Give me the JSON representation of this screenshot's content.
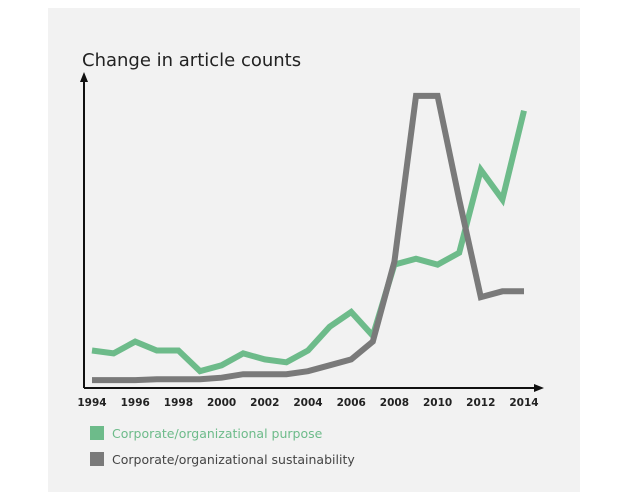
{
  "chart_data": {
    "type": "line",
    "title": "Change in article counts",
    "xlabel": "",
    "ylabel": "",
    "x": [
      1994,
      1995,
      1996,
      1997,
      1998,
      1999,
      2000,
      2001,
      2002,
      2003,
      2004,
      2005,
      2006,
      2007,
      2008,
      2009,
      2010,
      2011,
      2012,
      2013,
      2014
    ],
    "x_ticks": [
      "1994",
      "1996",
      "1998",
      "2000",
      "2002",
      "2004",
      "2006",
      "2008",
      "2010",
      "2012",
      "2014"
    ],
    "ylim": [
      0,
      100
    ],
    "grid": false,
    "legend_position": "bottom-left",
    "series": [
      {
        "name": "Corporate/organizational purpose",
        "color": "#6dbb8a",
        "values": [
          12,
          11,
          15,
          12,
          12,
          5,
          7,
          11,
          9,
          8,
          12,
          20,
          25,
          17,
          41,
          43,
          41,
          45,
          73,
          63,
          93
        ]
      },
      {
        "name": "Corporate/organizational sustainability",
        "color": "#7a7a7a",
        "values": [
          2,
          2,
          2,
          2.3,
          2.3,
          2.3,
          2.8,
          4,
          4,
          4,
          5,
          7,
          9,
          15,
          42,
          98,
          98,
          63,
          30,
          32,
          32
        ]
      }
    ]
  }
}
